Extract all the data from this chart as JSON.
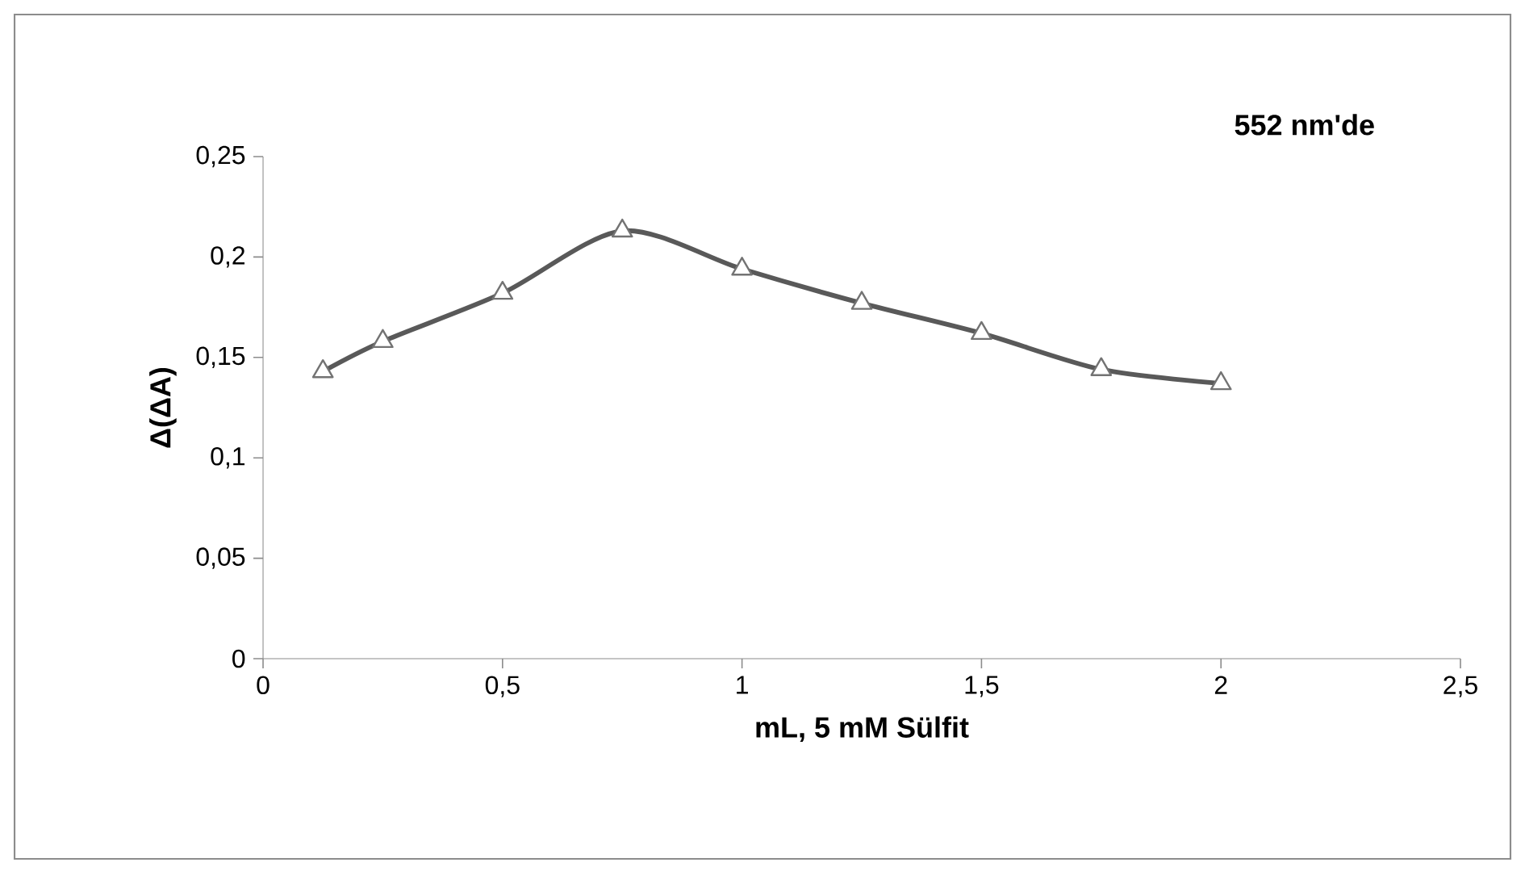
{
  "chart_data": {
    "type": "line",
    "xlabel": "mL, 5 mM Sülfit",
    "ylabel": "Δ(ΔA)",
    "annotations": [
      "**552 nm'de**"
    ],
    "x": [
      0.125,
      0.25,
      0.5,
      0.75,
      1,
      1.25,
      1.5,
      1.75,
      2
    ],
    "series": [
      {
        "color": "#595959",
        "values": [
          0.143,
          0.158,
          0.182,
          0.213,
          0.194,
          0.177,
          0.162,
          0.144,
          0.137
        ]
      }
    ],
    "xlim": [
      0,
      2.5
    ],
    "ylim": [
      0,
      0.25
    ],
    "xticks": [
      0,
      {
        "value": 0.5,
        "label": "0,5"
      },
      1,
      {
        "value": 1.5,
        "label": "1,5"
      },
      2,
      {
        "value": 2.5,
        "label": "2,5"
      }
    ],
    "yticks": [
      0,
      {
        "value": 0.05,
        "label": "0,05"
      },
      {
        "value": 0.1,
        "label": "0,1"
      },
      {
        "value": 0.15,
        "label": "0,15"
      },
      {
        "value": 0.2,
        "label": "0,2"
      },
      {
        "value": 0.25,
        "label": "0,25"
      }
    ],
    "marker": "triangle",
    "line_style": "solid"
  }
}
